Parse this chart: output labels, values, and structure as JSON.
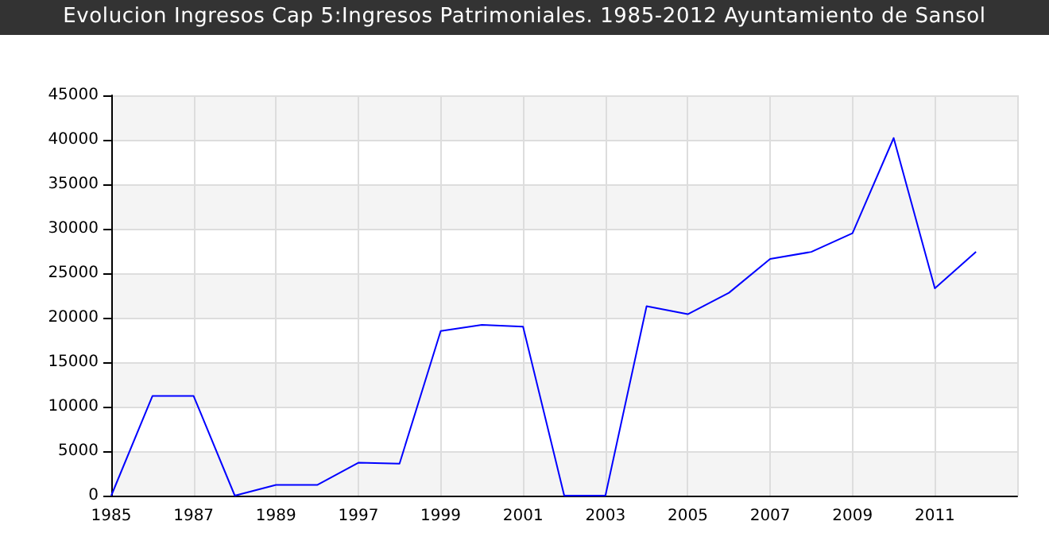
{
  "chart_data": {
    "type": "line",
    "title": "Evolucion Ingresos Cap 5:Ingresos Patrimoniales. 1985-2012 Ayuntamiento de Sansol",
    "categories": [
      "1985",
      null,
      "1987",
      null,
      "1989",
      null,
      "1997",
      null,
      "1999",
      null,
      "2001",
      null,
      "2003",
      null,
      "2005",
      null,
      "2007",
      null,
      "2009",
      null,
      "2011",
      null,
      null
    ],
    "series": [
      {
        "color": "#0000ff",
        "values": [
          0,
          11200,
          11200,
          0,
          1200,
          1200,
          3700,
          3600,
          18500,
          19200,
          19000,
          0,
          0,
          21300,
          20400,
          22800,
          26600,
          27400,
          29500,
          40200,
          23300,
          27400,
          null
        ]
      }
    ],
    "ylim": [
      0,
      45000
    ],
    "yticks": [
      0,
      5000,
      10000,
      15000,
      20000,
      25000,
      30000,
      35000,
      40000,
      45000
    ],
    "grid": true,
    "marker": "none",
    "line_style": "solid"
  }
}
